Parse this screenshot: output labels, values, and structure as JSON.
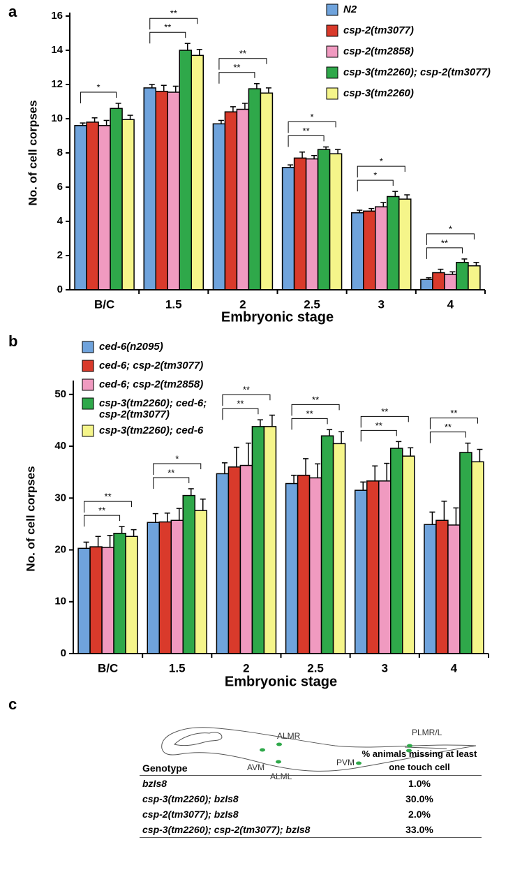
{
  "panel_labels": [
    "a",
    "b",
    "c"
  ],
  "chart_data": [
    {
      "type": "bar",
      "x_label": "Embryonic stage",
      "y_label": "No. of cell corpses",
      "categories": [
        "B/C",
        "1.5",
        "2",
        "2.5",
        "3",
        "4"
      ],
      "series": [
        {
          "name": "N2",
          "color": "#6fa3dc",
          "values": [
            9.6,
            11.8,
            9.7,
            7.15,
            4.5,
            0.6
          ],
          "errors": [
            0.15,
            0.2,
            0.2,
            0.15,
            0.15,
            0.1
          ]
        },
        {
          "name": "csp-2(tm3077)",
          "color": "#d93a2b",
          "values": [
            9.8,
            11.6,
            10.4,
            7.7,
            4.6,
            1.0
          ],
          "errors": [
            0.25,
            0.35,
            0.3,
            0.35,
            0.15,
            0.2
          ]
        },
        {
          "name": "csp-2(tm2858)",
          "color": "#f09ac0",
          "values": [
            9.6,
            11.55,
            10.55,
            7.65,
            4.85,
            0.9
          ],
          "errors": [
            0.3,
            0.35,
            0.35,
            0.2,
            0.25,
            0.15
          ]
        },
        {
          "name": "csp-3(tm2260); csp-2(tm3077)",
          "color": "#2fa84a",
          "values": [
            10.6,
            14.0,
            11.75,
            8.2,
            5.45,
            1.6
          ],
          "errors": [
            0.3,
            0.4,
            0.3,
            0.15,
            0.3,
            0.2
          ]
        },
        {
          "name": "csp-3(tm2260)",
          "color": "#f5f58a",
          "values": [
            9.95,
            13.7,
            11.5,
            7.95,
            5.3,
            1.4
          ],
          "errors": [
            0.25,
            0.35,
            0.3,
            0.25,
            0.25,
            0.2
          ]
        }
      ],
      "ylim": [
        0,
        16
      ],
      "yticks": [
        0,
        2,
        4,
        6,
        8,
        10,
        12,
        14,
        16
      ],
      "annotations": [
        {
          "category": 0,
          "from": 0,
          "to": 3,
          "label": "*"
        },
        {
          "category": 1,
          "from": 0,
          "to": 3,
          "label": "**"
        },
        {
          "category": 1,
          "from": 0,
          "to": 4,
          "label": "**"
        },
        {
          "category": 2,
          "from": 0,
          "to": 3,
          "label": "**"
        },
        {
          "category": 2,
          "from": 0,
          "to": 4,
          "label": "**"
        },
        {
          "category": 3,
          "from": 0,
          "to": 3,
          "label": "**"
        },
        {
          "category": 3,
          "from": 0,
          "to": 4,
          "label": "*"
        },
        {
          "category": 4,
          "from": 0,
          "to": 3,
          "label": "*"
        },
        {
          "category": 4,
          "from": 0,
          "to": 4,
          "label": "*"
        },
        {
          "category": 5,
          "from": 0,
          "to": 3,
          "label": "**"
        },
        {
          "category": 5,
          "from": 0,
          "to": 4,
          "label": "*"
        }
      ]
    },
    {
      "type": "bar",
      "x_label": "Embryonic stage",
      "y_label": "No. of cell corpses",
      "categories": [
        "B/C",
        "1.5",
        "2",
        "2.5",
        "3",
        "4"
      ],
      "series": [
        {
          "name": "ced-6(n2095)",
          "color": "#6fa3dc",
          "values": [
            20.3,
            25.3,
            34.7,
            32.8,
            31.5,
            24.9
          ],
          "errors": [
            1.2,
            1.7,
            2.1,
            1.6,
            1.6,
            2.4
          ]
        },
        {
          "name": "ced-6; csp-2(tm3077)",
          "color": "#d93a2b",
          "values": [
            20.6,
            25.4,
            36.0,
            34.4,
            33.3,
            25.7
          ],
          "errors": [
            2.0,
            1.7,
            3.8,
            3.2,
            2.9,
            3.7
          ]
        },
        {
          "name": "ced-6; csp-2(tm2858)",
          "color": "#f09ac0",
          "values": [
            20.5,
            25.7,
            36.3,
            33.9,
            33.3,
            24.8
          ],
          "errors": [
            2.3,
            2.3,
            4.3,
            2.7,
            3.4,
            3.3
          ]
        },
        {
          "name": "csp-3(tm2260); ced-6; csp-2(tm3077)",
          "color": "#2fa84a",
          "values": [
            23.2,
            30.5,
            43.8,
            42.0,
            39.6,
            38.8
          ],
          "errors": [
            1.3,
            1.3,
            1.3,
            1.2,
            1.3,
            1.8
          ]
        },
        {
          "name": "csp-3(tm2260); ced-6",
          "color": "#f5f58a",
          "values": [
            22.6,
            27.6,
            43.8,
            40.5,
            38.1,
            37.0
          ],
          "errors": [
            1.3,
            2.2,
            2.2,
            2.3,
            1.6,
            2.4
          ]
        }
      ],
      "ylim": [
        0,
        52
      ],
      "yticks": [
        0,
        10,
        20,
        30,
        40,
        50
      ],
      "annotations": [
        {
          "category": 0,
          "from": 0,
          "to": 3,
          "label": "**"
        },
        {
          "category": 0,
          "from": 0,
          "to": 4,
          "label": "**"
        },
        {
          "category": 1,
          "from": 0,
          "to": 3,
          "label": "**"
        },
        {
          "category": 1,
          "from": 0,
          "to": 4,
          "label": "*"
        },
        {
          "category": 2,
          "from": 0,
          "to": 3,
          "label": "**"
        },
        {
          "category": 2,
          "from": 0,
          "to": 4,
          "label": "**"
        },
        {
          "category": 3,
          "from": 0,
          "to": 3,
          "label": "**"
        },
        {
          "category": 3,
          "from": 0,
          "to": 4,
          "label": "**"
        },
        {
          "category": 4,
          "from": 0,
          "to": 3,
          "label": "**"
        },
        {
          "category": 4,
          "from": 0,
          "to": 4,
          "label": "**"
        },
        {
          "category": 5,
          "from": 0,
          "to": 3,
          "label": "**"
        },
        {
          "category": 5,
          "from": 0,
          "to": 4,
          "label": "**"
        }
      ]
    }
  ],
  "diagram": {
    "labels": [
      "ALMR",
      "AVM",
      "ALML",
      "PVM",
      "PLMR/L"
    ]
  },
  "table": {
    "header": [
      "Genotype",
      "% animals missing at least one touch cell"
    ],
    "rows": [
      [
        "bzIs8",
        "1.0%"
      ],
      [
        "csp-3(tm2260); bzIs8",
        "30.0%"
      ],
      [
        "csp-2(tm3077); bzIs8",
        "2.0%"
      ],
      [
        "csp-3(tm2260); csp-2(tm3077); bzIs8",
        "33.0%"
      ]
    ]
  }
}
